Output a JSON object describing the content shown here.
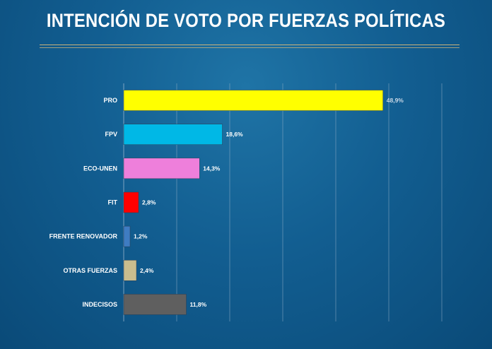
{
  "chart_data": {
    "type": "bar",
    "orientation": "horizontal",
    "title": "INTENCIÓN DE VOTO POR FUERZAS POLÍTICAS",
    "categories": [
      "PRO",
      "FPV",
      "ECO-UNEN",
      "FIT",
      "FRENTE RENOVADOR",
      "OTRAS FUERZAS",
      "INDECISOS"
    ],
    "values": [
      48.9,
      18.6,
      14.3,
      2.8,
      1.2,
      2.4,
      11.8
    ],
    "value_labels": [
      "48,9%",
      "18,6%",
      "14,3%",
      "2,8%",
      "1,2%",
      "2,4%",
      "11,8%"
    ],
    "colors": [
      "#ffff00",
      "#00b8e6",
      "#ee7fdb",
      "#ff0000",
      "#3f7cc2",
      "#c9bd8e",
      "#5f5f5f"
    ],
    "xlim": [
      0,
      60
    ],
    "xlabel": "",
    "ylabel": "",
    "grid": true
  }
}
